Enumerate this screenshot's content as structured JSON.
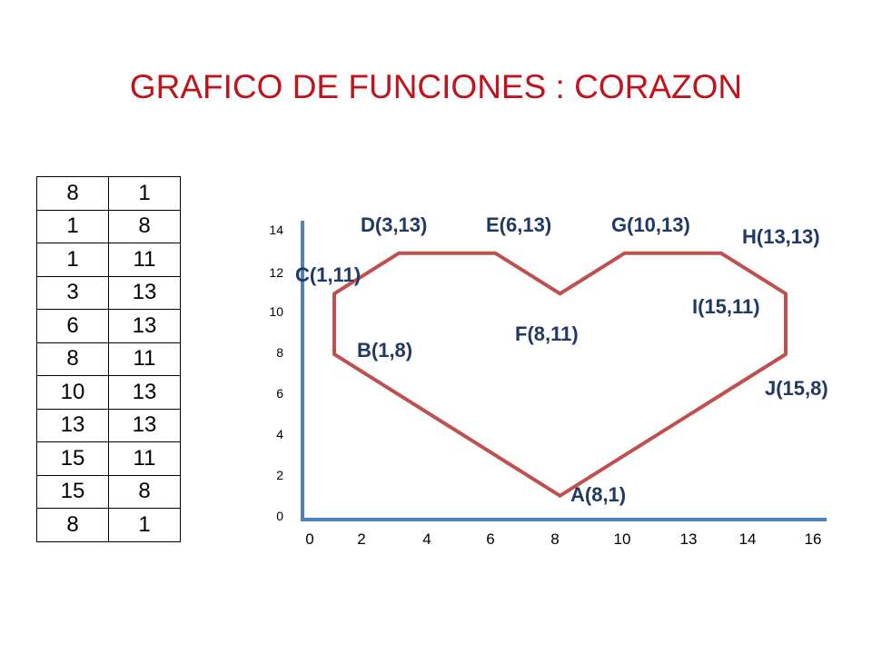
{
  "title": "GRAFICO DE FUNCIONES :  CORAZON",
  "table": {
    "rows": [
      [
        "8",
        "1"
      ],
      [
        "1",
        "8"
      ],
      [
        "1",
        "11"
      ],
      [
        "3",
        "13"
      ],
      [
        "6",
        "13"
      ],
      [
        "8",
        "11"
      ],
      [
        "10",
        "13"
      ],
      [
        "13",
        "13"
      ],
      [
        "15",
        "11"
      ],
      [
        "15",
        "8"
      ],
      [
        "8",
        "1"
      ]
    ]
  },
  "chart_data": {
    "type": "line",
    "title": "",
    "xlabel": "",
    "ylabel": "",
    "x_ticks": [
      "0",
      "2",
      "4",
      "6",
      "8",
      "10",
      "13",
      "14",
      "16"
    ],
    "y_ticks": [
      "0",
      "2",
      "4",
      "6",
      "8",
      "10",
      "12",
      "14"
    ],
    "xlim": [
      0,
      16
    ],
    "ylim": [
      0,
      14
    ],
    "series": [
      {
        "x": [
          8,
          1,
          1,
          3,
          6,
          8,
          10,
          13,
          15,
          15,
          8
        ],
        "y": [
          1,
          8,
          11,
          13,
          13,
          11,
          13,
          13,
          11,
          8,
          1
        ]
      }
    ],
    "point_labels": [
      "A(8,1)",
      "B(1,8)",
      "C(1,11)",
      "D(3,13)",
      "E(6,13)",
      "F(8,11)",
      "G(10,13)",
      "H(13,13)",
      "I(15,11)",
      "J(15,8)"
    ],
    "line_color": "#c0504d",
    "axis_color": "#4f81bd",
    "label_color": "#1f3864",
    "grid": false
  }
}
